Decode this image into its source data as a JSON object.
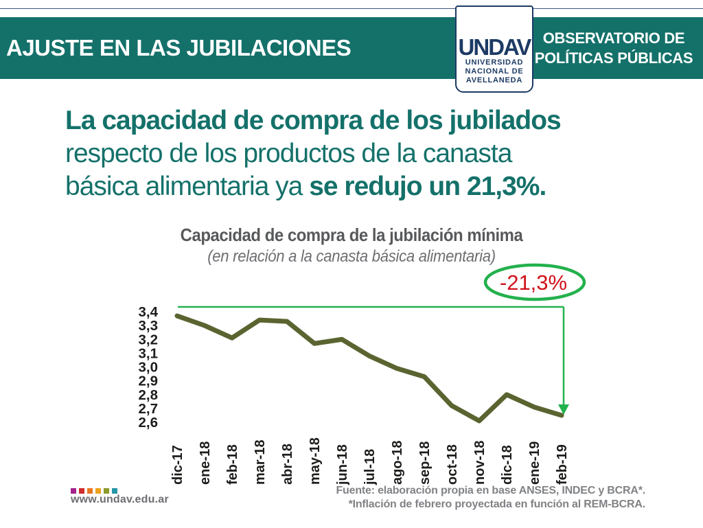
{
  "header": {
    "bar_color": "#14716a",
    "navy": "#1c3a64",
    "title": "AJUSTE EN LAS JUBILACIONES",
    "observatory_line1": "OBSERVATORIO DE",
    "observatory_line2": "POLÍTICAS PÚBLICAS",
    "logo": {
      "acronym": "UNDAV",
      "line1": "UNIVERSIDAD",
      "line2": "NACIONAL DE",
      "line3": "AVELLANEDA"
    }
  },
  "headline": {
    "color": "#14716a",
    "line1_bold": "La capacidad de compra de los jubilados",
    "line2": "respecto de los productos de la canasta",
    "line3_prefix": "básica alimentaria ya ",
    "line3_bold": "se redujo un 21,3%."
  },
  "chart": {
    "title": "Capacidad de compra de la jubilación mínima",
    "subtitle": "(en relación a la canasta básica alimentaria)",
    "annotation": "-21,3%",
    "annotation_text_color": "#d01119",
    "annotation_green": "#23b14d",
    "line_color": "#5a6430"
  },
  "chart_data": {
    "type": "line",
    "title": "Capacidad de compra de la jubilación mínima",
    "subtitle": "(en relación a la canasta básica alimentaria)",
    "categories": [
      "dic-17",
      "ene-18",
      "feb-18",
      "mar-18",
      "abr-18",
      "may-18",
      "jun-18",
      "jul-18",
      "ago-18",
      "sep-18",
      "oct-18",
      "nov-18",
      "dic-18",
      "ene-19",
      "feb-19"
    ],
    "values": [
      3.37,
      3.3,
      3.21,
      3.34,
      3.33,
      3.17,
      3.2,
      3.08,
      2.99,
      2.93,
      2.72,
      2.61,
      2.8,
      2.71,
      2.65
    ],
    "yticks": [
      "3,4",
      "3,3",
      "3,2",
      "3,1",
      "3,0",
      "2,9",
      "2,8",
      "2,7",
      "2,6"
    ],
    "ylim": [
      2.6,
      3.4
    ],
    "xlabel": "",
    "ylabel": "",
    "grid": false,
    "legend": false,
    "annotation": "-21,3%"
  },
  "footer": {
    "url": "www.undav.edu.ar",
    "squares": [
      "#a3238e",
      "#d02c2f",
      "#e87722",
      "#eda31b",
      "#8c9b2a",
      "#2596a6"
    ],
    "source_line1": "Fuente: elaboración propia en base ANSES, INDEC y BCRA*.",
    "source_line2": "*Inflación de febrero proyectada en función al REM-BCRA."
  }
}
